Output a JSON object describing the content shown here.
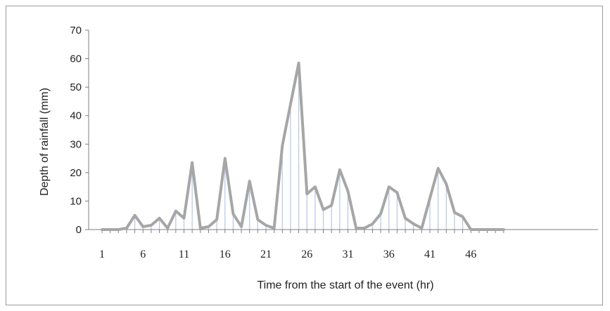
{
  "chart_data": {
    "type": "line",
    "title": "",
    "xlabel": "Time from the start of the event (hr)",
    "ylabel": "Depth of rainfall (mm)",
    "ylim": [
      0,
      70
    ],
    "yticks": [
      0,
      10,
      20,
      30,
      40,
      50,
      60,
      70
    ],
    "xlim": [
      1,
      50
    ],
    "xticks": [
      1,
      6,
      11,
      16,
      21,
      26,
      31,
      36,
      41,
      46
    ],
    "grid": false,
    "legend": "none",
    "colors": {
      "line": "#a6a6a6",
      "drop_lines": "#b4c8e6",
      "axis": "#7f7f7f"
    },
    "series": [
      {
        "x": [
          1,
          2,
          3,
          4,
          5,
          6,
          7,
          8,
          9,
          10,
          11,
          12,
          13,
          14,
          15,
          16,
          17,
          18,
          19,
          20,
          21,
          22,
          23,
          24,
          25,
          26,
          27,
          28,
          29,
          30,
          31,
          32,
          33,
          34,
          35,
          36,
          37,
          38,
          39,
          40,
          41,
          42,
          43,
          44,
          45,
          46,
          47,
          48,
          49,
          50
        ],
        "values": [
          0,
          0,
          0,
          0.5,
          5,
          1,
          1.5,
          4,
          0.5,
          6.5,
          4,
          23.5,
          0.5,
          1,
          3.5,
          25,
          5.5,
          1,
          17,
          3.5,
          1.5,
          0.5,
          29.5,
          44,
          58.5,
          12.5,
          15,
          7,
          8.5,
          21,
          13.5,
          0.5,
          0.5,
          2,
          5.5,
          15,
          13,
          4,
          2,
          0.5,
          11,
          21.5,
          16,
          6,
          4.5,
          0,
          0,
          0,
          0,
          0
        ]
      }
    ]
  }
}
